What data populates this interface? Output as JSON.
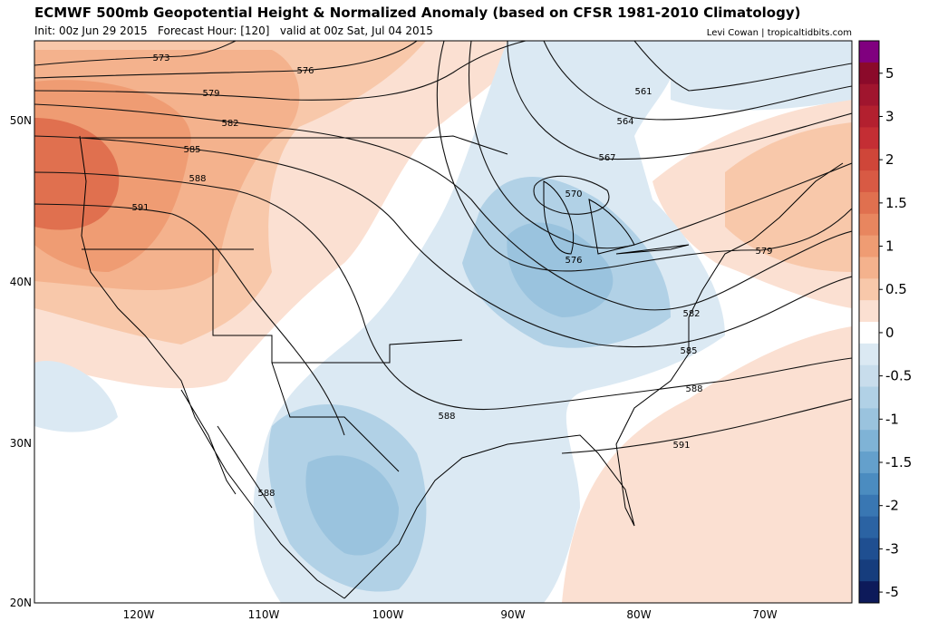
{
  "header": {
    "title": "ECMWF 500mb Geopotential Height & Normalized Anomaly (based on CFSR 1981-2010 Climatology)",
    "subtitle": "Init: 00z Jun 29 2015   Forecast Hour: [120]   valid at 00z Sat, Jul 04 2015",
    "credit": "Levi Cowan | tropicaltidbits.com"
  },
  "lat_labels": [
    "50N",
    "40N",
    "30N",
    "20N"
  ],
  "lon_labels": [
    "120W",
    "110W",
    "100W",
    "90W",
    "80W",
    "70W"
  ],
  "contour_labels": [
    "573",
    "576",
    "579",
    "582",
    "585",
    "588",
    "591",
    "561",
    "564",
    "567",
    "570",
    "576",
    "579",
    "582",
    "585",
    "588",
    "591",
    "588",
    "588"
  ],
  "colorbar": {
    "ticks": [
      5,
      3,
      2,
      1.5,
      1,
      0.5,
      0,
      -0.5,
      -1,
      -1.5,
      -2,
      -3,
      -5
    ],
    "colors": [
      "#80007f",
      "#8b0a2a",
      "#a0152e",
      "#b3202f",
      "#c42e34",
      "#cf4639",
      "#d85a44",
      "#e0704f",
      "#e8865f",
      "#ef9c73",
      "#f4b28d",
      "#f8c8aa",
      "#fbe0d2",
      "#ffffff",
      "#dbe9f3",
      "#c8ddec",
      "#b1d1e6",
      "#9ac3de",
      "#7fb3d6",
      "#64a0cc",
      "#4b8cc0",
      "#3977b3",
      "#2b63a3",
      "#1f4f91",
      "#163d7d",
      "#0d1a5a"
    ]
  }
}
